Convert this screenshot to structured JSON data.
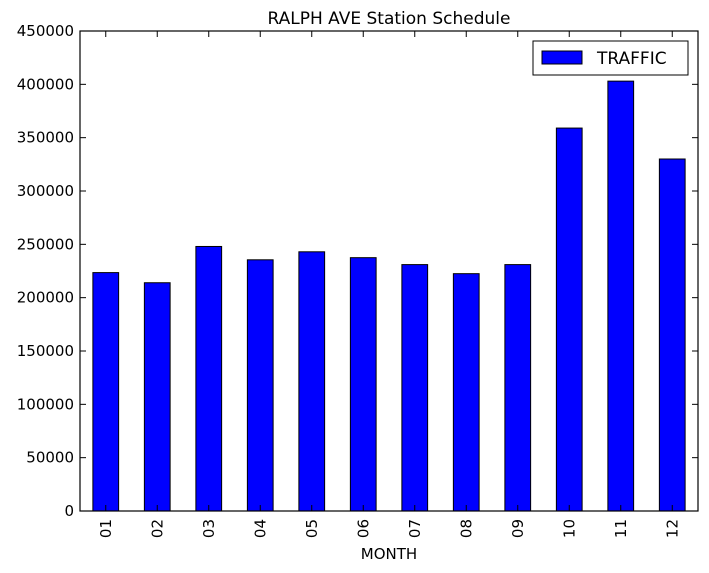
{
  "chart_data": {
    "type": "bar",
    "title": "RALPH AVE Station Schedule",
    "xlabel": "MONTH",
    "ylabel": "",
    "categories": [
      "01",
      "02",
      "03",
      "04",
      "05",
      "06",
      "07",
      "08",
      "09",
      "10",
      "11",
      "12"
    ],
    "series": [
      {
        "name": "TRAFFIC",
        "values": [
          223500,
          214000,
          248000,
          235500,
          243000,
          237500,
          231000,
          222500,
          231000,
          359000,
          403000,
          330000
        ],
        "color": "#0000ff"
      }
    ],
    "ylim": [
      0,
      450000
    ],
    "yticks": [
      0,
      50000,
      100000,
      150000,
      200000,
      250000,
      300000,
      350000,
      400000,
      450000
    ],
    "ytick_labels": [
      "0",
      "50000",
      "100000",
      "150000",
      "200000",
      "250000",
      "300000",
      "350000",
      "400000",
      "450000"
    ],
    "legend_position": "top-right",
    "grid": false
  }
}
